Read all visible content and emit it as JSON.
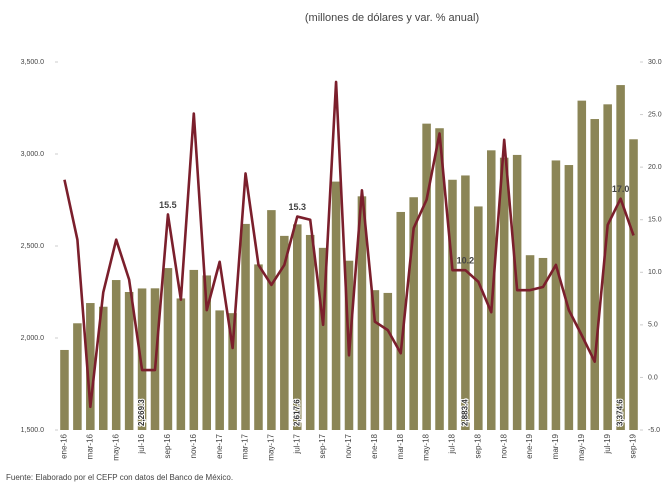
{
  "chart_data": {
    "type": "bar-line",
    "subtitle": "(millones de dólares y var. % anual)",
    "source": "Fuente: Elaborado por el CEFP con datos del Banco de México.",
    "categories": [
      "ene-16",
      null,
      "mar-16",
      null,
      "may-16",
      null,
      "jul-16",
      null,
      "sep-16",
      null,
      "nov-16",
      null,
      "ene-17",
      null,
      "mar-17",
      null,
      "may-17",
      null,
      "jul-17",
      null,
      "sep-17",
      null,
      "nov-17",
      null,
      "ene-18",
      null,
      "mar-18",
      null,
      "may-18",
      null,
      "jul-18",
      null,
      "sep-18",
      null,
      "nov-18",
      null,
      "ene-19",
      null,
      "mar-19",
      null,
      "may-19",
      null,
      "jul-19",
      null,
      "sep-19"
    ],
    "series": [
      {
        "type": "bar",
        "color": "#8b8556",
        "values": [
          1935,
          2080,
          2190,
          2170,
          2315,
          2250,
          2269.3,
          2270,
          2380,
          2215,
          2370,
          2340,
          2150,
          2135,
          2620,
          2400,
          2695,
          2555,
          2617.6,
          2560,
          2490,
          2850,
          2420,
          2770,
          2260,
          2245,
          2685,
          2765,
          3165,
          3140,
          2860,
          2883.4,
          2715,
          3020,
          2980,
          2995,
          2450,
          2435,
          2965,
          2940,
          3290,
          3190,
          3270,
          3374.6,
          3080
        ],
        "value_labels": [
          null,
          null,
          null,
          null,
          null,
          null,
          "2,269.3",
          null,
          null,
          null,
          null,
          null,
          null,
          null,
          null,
          null,
          null,
          null,
          "2,617.6",
          null,
          null,
          null,
          null,
          null,
          null,
          null,
          null,
          null,
          null,
          null,
          null,
          "2,883.4",
          null,
          null,
          null,
          null,
          null,
          null,
          null,
          null,
          null,
          null,
          null,
          "3,374.6",
          null
        ]
      },
      {
        "type": "line",
        "color": "#7b1f2c",
        "axis": "y2",
        "values": [
          18.8,
          13.1,
          -2.8,
          8.1,
          13.1,
          9.3,
          0.7,
          0.7,
          15.5,
          7.4,
          25.1,
          6.4,
          11.0,
          2.8,
          19.4,
          10.7,
          8.8,
          10.7,
          15.3,
          15.0,
          5.0,
          28.1,
          2.1,
          17.8,
          5.3,
          4.5,
          2.3,
          14.2,
          16.9,
          23.2,
          10.2,
          10.2,
          9.1,
          6.2,
          22.6,
          8.3,
          8.3,
          8.6,
          10.7,
          6.4,
          4.0,
          1.5,
          14.5,
          17.0,
          13.5
        ],
        "value_labels": [
          null,
          null,
          null,
          null,
          null,
          null,
          null,
          null,
          "15.5",
          null,
          null,
          null,
          null,
          null,
          null,
          null,
          null,
          null,
          "15.3",
          null,
          null,
          null,
          null,
          null,
          null,
          null,
          null,
          null,
          null,
          null,
          null,
          "10.2",
          null,
          null,
          null,
          null,
          null,
          null,
          null,
          null,
          null,
          null,
          null,
          "17.0",
          null
        ]
      }
    ],
    "ylim": [
      1500,
      3500
    ],
    "yticks": [
      {
        "value": 1500,
        "label": "1,500.0"
      },
      {
        "value": 2000,
        "label": "2,000.0"
      },
      {
        "value": 2500,
        "label": "2,500.0"
      },
      {
        "value": 3000,
        "label": "3,000.0"
      },
      {
        "value": 3500,
        "label": "3,500.0"
      }
    ],
    "y2lim": [
      -5,
      30
    ],
    "y2ticks": [
      {
        "value": -5,
        "label": "-5.0"
      },
      {
        "value": 0,
        "label": "0.0"
      },
      {
        "value": 5,
        "label": "5.0"
      },
      {
        "value": 10,
        "label": "10.0"
      },
      {
        "value": 15,
        "label": "15.0"
      },
      {
        "value": 20,
        "label": "20.0"
      },
      {
        "value": 25,
        "label": "25.0"
      },
      {
        "value": 30,
        "label": "30.0"
      }
    ]
  }
}
